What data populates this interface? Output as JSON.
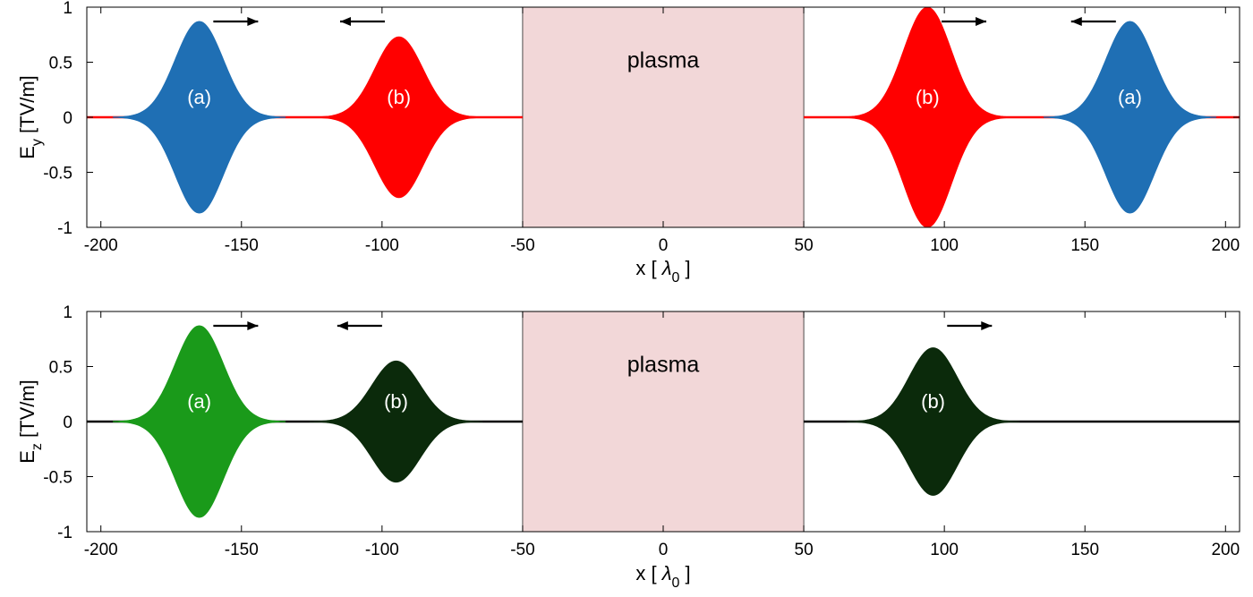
{
  "chart_data": [
    {
      "type": "line",
      "xlabel": "x [ λ0 ]",
      "xlabel_parts": {
        "text": "x [ ",
        "symbol": "λ",
        "sub": "0",
        "close": " ]"
      },
      "ylabel": "E_y [TV/m]",
      "ylabel_parts": {
        "main": "E",
        "sub": "y",
        "unit": " [TV/m]"
      },
      "xlim": [
        -205,
        205
      ],
      "ylim": [
        -1,
        1
      ],
      "xticks": [
        -200,
        -150,
        -100,
        -50,
        0,
        50,
        100,
        150,
        200
      ],
      "xtick_labels": [
        "-200",
        "-150",
        "-100",
        "-50",
        "0",
        "50",
        "100",
        "150",
        "200"
      ],
      "yticks": [
        -1,
        -0.5,
        0,
        0.5,
        1
      ],
      "ytick_labels": [
        "-1",
        "-0.5",
        "0",
        "0.5",
        "1"
      ],
      "grid": false,
      "region": {
        "x": [
          -50,
          50
        ],
        "label": "plasma",
        "color": "#f2d7d8"
      },
      "baseline_color": "#ff0000",
      "series": [
        {
          "label": "(a)",
          "color": "#1f6fb4",
          "center": -165,
          "amplitude": 0.87,
          "sigma": 8.5,
          "direction": "right"
        },
        {
          "label": "(b)",
          "color": "#ff0000",
          "center": -94,
          "amplitude": 0.73,
          "sigma": 8.5,
          "direction": "left"
        },
        {
          "label": "(b)",
          "color": "#ff0000",
          "center": 94,
          "amplitude": 1.0,
          "sigma": 8.5,
          "direction": "right"
        },
        {
          "label": "(a)",
          "color": "#1f6fb4",
          "center": 166,
          "amplitude": 0.87,
          "sigma": 8.5,
          "direction": "left"
        }
      ]
    },
    {
      "type": "line",
      "xlabel": "x [ λ0 ]",
      "xlabel_parts": {
        "text": "x [ ",
        "symbol": "λ",
        "sub": "0",
        "close": " ]"
      },
      "ylabel": "E_z [TV/m]",
      "ylabel_parts": {
        "main": "E",
        "sub": "z",
        "unit": " [TV/m]"
      },
      "xlim": [
        -205,
        205
      ],
      "ylim": [
        -1,
        1
      ],
      "xticks": [
        -200,
        -150,
        -100,
        -50,
        0,
        50,
        100,
        150,
        200
      ],
      "xtick_labels": [
        "-200",
        "-150",
        "-100",
        "-50",
        "0",
        "50",
        "100",
        "150",
        "200"
      ],
      "yticks": [
        -1,
        -0.5,
        0,
        0.5,
        1
      ],
      "ytick_labels": [
        "-1",
        "-0.5",
        "0",
        "0.5",
        "1"
      ],
      "grid": false,
      "region": {
        "x": [
          -50,
          50
        ],
        "label": "plasma",
        "color": "#f2d7d8"
      },
      "baseline_color": "#000000",
      "series": [
        {
          "label": "(a)",
          "color": "#1a9a1a",
          "center": -165,
          "amplitude": 0.87,
          "sigma": 8.5,
          "direction": "right"
        },
        {
          "label": "(b)",
          "color": "#0b2a0b",
          "center": -95,
          "amplitude": 0.55,
          "sigma": 8.5,
          "direction": "left"
        },
        {
          "label": "(b)",
          "color": "#0b2a0b",
          "center": 96,
          "amplitude": 0.67,
          "sigma": 8.5,
          "direction": "right"
        }
      ]
    }
  ]
}
